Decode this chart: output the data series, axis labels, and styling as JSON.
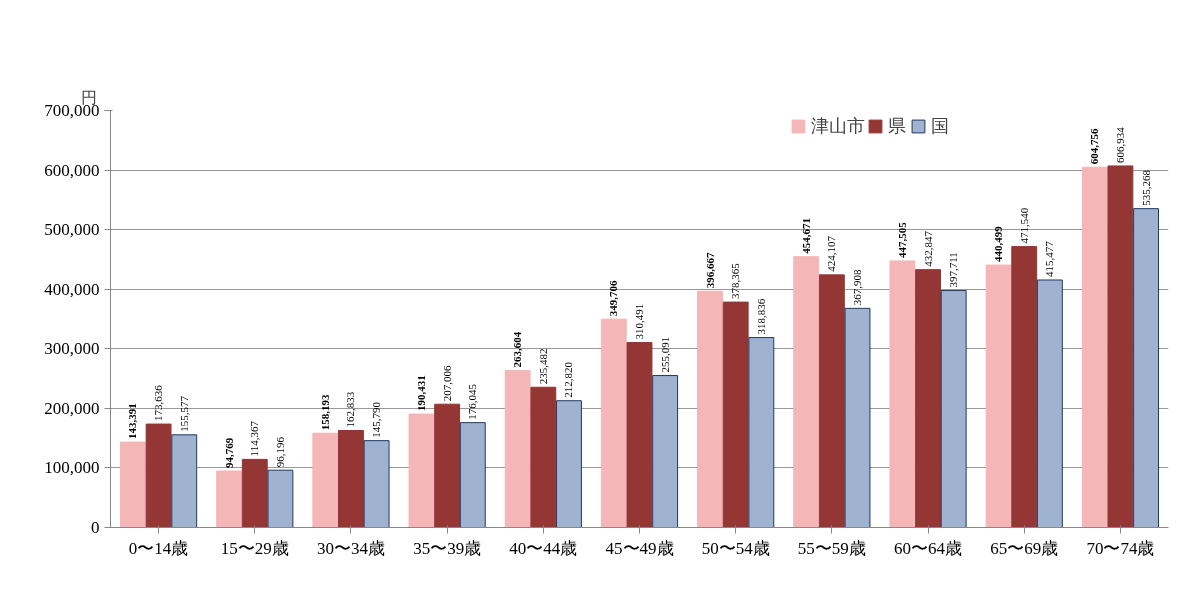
{
  "chart_data": {
    "type": "bar",
    "ylabel": "円",
    "categories": [
      "0〜14歳",
      "15〜29歳",
      "30〜34歳",
      "35〜39歳",
      "40〜44歳",
      "45〜49歳",
      "50〜54歳",
      "55〜59歳",
      "60〜64歳",
      "65〜69歳",
      "70〜74歳"
    ],
    "series": [
      {
        "name": "津山市",
        "color": "#f4b6b6",
        "values": [
          143391,
          94769,
          158193,
          190431,
          263604,
          349706,
          396667,
          454671,
          447505,
          440499,
          604756
        ],
        "value_labels": [
          "143,391",
          "94,769",
          "158,193",
          "190,431",
          "263,604",
          "349,706",
          "396,667",
          "454,671",
          "447,505",
          "440,499",
          "604,756"
        ]
      },
      {
        "name": "県",
        "color": "#943634",
        "values": [
          173636,
          114367,
          162833,
          207006,
          235482,
          310491,
          378365,
          424107,
          432847,
          471540,
          606934
        ],
        "value_labels": [
          "173,636",
          "114,367",
          "162,833",
          "207,006",
          "235,482",
          "310,491",
          "378,365",
          "424,107",
          "432,847",
          "471,540",
          "606,934"
        ]
      },
      {
        "name": "国",
        "color": "#9fb3d1",
        "values": [
          155577,
          96196,
          145790,
          176045,
          212820,
          255091,
          318836,
          367908,
          397711,
          415477,
          535268
        ],
        "value_labels": [
          "155,577",
          "96,196",
          "145,790",
          "176,045",
          "212,820",
          "255,091",
          "318,836",
          "367,908",
          "397,711",
          "415,477",
          "535,268"
        ]
      }
    ],
    "ylim": [
      0,
      700000
    ],
    "yticks": [
      0,
      {
        "value": 100000,
        "label": "100,000"
      },
      {
        "value": 200000,
        "label": "200,000"
      },
      {
        "value": 300000,
        "label": "300,000"
      },
      {
        "value": 400000,
        "label": "400,000"
      },
      {
        "value": 500000,
        "label": "500,000"
      },
      {
        "value": 600000,
        "label": "600,000"
      },
      {
        "value": 700000,
        "label": "700,000"
      }
    ],
    "grid": "y",
    "legend": "top right"
  }
}
